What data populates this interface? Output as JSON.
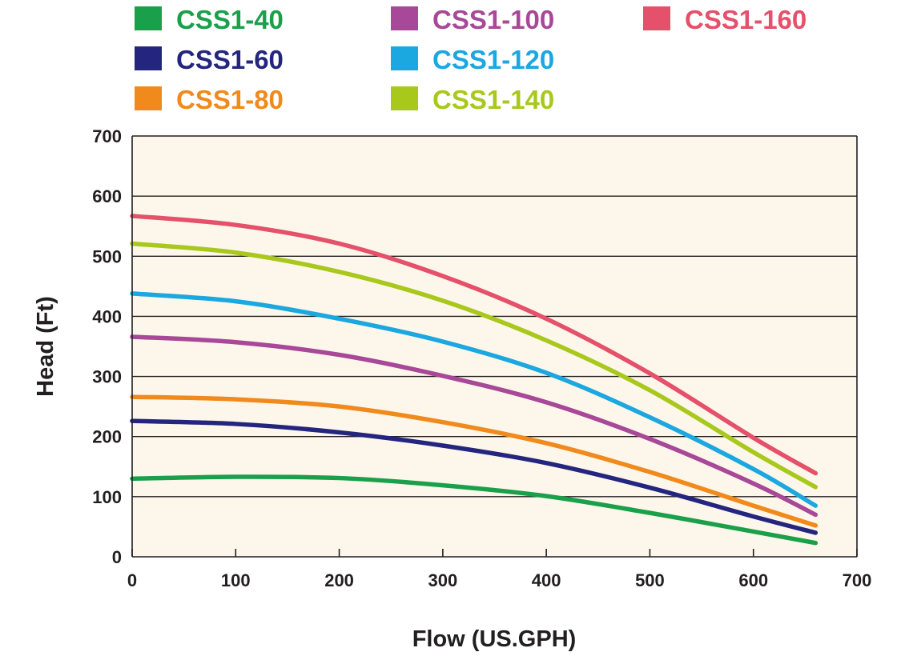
{
  "chart_data": {
    "type": "line",
    "xlabel": "Flow (US.GPH)",
    "ylabel": "Head (Ft)",
    "xlim": [
      0,
      700
    ],
    "ylim": [
      0,
      700
    ],
    "xticks": [
      0,
      100,
      200,
      300,
      400,
      500,
      600,
      700
    ],
    "yticks": [
      0,
      100,
      200,
      300,
      400,
      500,
      600,
      700
    ],
    "grid": "horizontal",
    "legend_position": "top",
    "plot_background": "#fdf6ea",
    "x": [
      0,
      100,
      200,
      300,
      400,
      500,
      600,
      660
    ],
    "series": [
      {
        "name": "CSS1-40",
        "color": "#1aa04a",
        "values": [
          130,
          133,
          131,
          119,
          101,
          73,
          42,
          23
        ]
      },
      {
        "name": "CSS1-60",
        "color": "#24257e",
        "values": [
          226,
          221,
          207,
          185,
          156,
          115,
          67,
          40
        ]
      },
      {
        "name": "CSS1-80",
        "color": "#f18a1c",
        "values": [
          266,
          262,
          250,
          224,
          189,
          141,
          85,
          52
        ]
      },
      {
        "name": "CSS1-100",
        "color": "#a84898",
        "values": [
          366,
          357,
          336,
          301,
          257,
          196,
          122,
          70
        ]
      },
      {
        "name": "CSS1-120",
        "color": "#1ba7e0",
        "values": [
          438,
          425,
          396,
          358,
          306,
          232,
          146,
          85
        ]
      },
      {
        "name": "CSS1-140",
        "color": "#a8c81c",
        "values": [
          521,
          506,
          474,
          426,
          360,
          277,
          174,
          116
        ]
      },
      {
        "name": "CSS1-160",
        "color": "#e5506a",
        "values": [
          567,
          552,
          521,
          467,
          396,
          305,
          198,
          139
        ]
      }
    ]
  }
}
